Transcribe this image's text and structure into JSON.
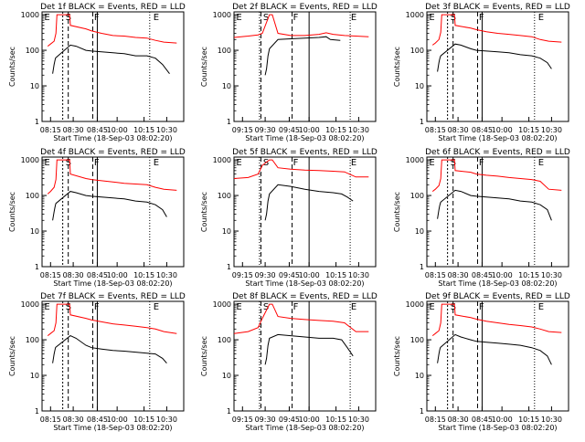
{
  "chart_data": [
    {
      "type": "line",
      "title": "Det 1f BLACK = Events, RED = LLD",
      "ylabel": "Counts/sec",
      "xlabel": "Start Time (18-Sep-03 08:02:20)",
      "x_ticks": [
        "08:15",
        "08:30",
        "08:45",
        "10:00",
        "10:15",
        "10:30"
      ],
      "y_ticks": [
        "1",
        "10",
        "100",
        "1000"
      ],
      "yscale": "log",
      "ylim": [
        1,
        1200
      ],
      "markers": [
        "E",
        "S",
        "F",
        "E"
      ],
      "series": [
        {
          "color": "#ff0000",
          "x": [
            0.04,
            0.06,
            0.085,
            0.098,
            0.105,
            0.195,
            0.2,
            0.31,
            0.35,
            0.42,
            0.5,
            0.58,
            0.66,
            0.74,
            0.8,
            0.86,
            0.95
          ],
          "y": [
            130,
            150,
            180,
            300,
            1000,
            1000,
            500,
            400,
            350,
            300,
            260,
            250,
            230,
            220,
            190,
            170,
            160
          ]
        },
        {
          "color": "#000000",
          "x": [
            0.075,
            0.085,
            0.09,
            0.095,
            0.098,
            0.2,
            0.24,
            0.31,
            0.35,
            0.42,
            0.5,
            0.58,
            0.66,
            0.74,
            0.8,
            0.85,
            0.9
          ],
          "y": [
            22,
            40,
            50,
            60,
            62,
            140,
            130,
            100,
            95,
            90,
            85,
            80,
            70,
            70,
            60,
            40,
            22
          ]
        }
      ]
    },
    {
      "type": "line",
      "title": "Det 2f BLACK = Events, RED = LLD",
      "ylabel": "Counts/sec",
      "xlabel": "Start Time (18-Sep-03 08:02:20)",
      "x_ticks": [
        "09:15",
        "09:30",
        "09:45",
        "10:00",
        "10:15",
        "10:30"
      ],
      "y_ticks": [
        "1",
        "10",
        "100",
        "1000"
      ],
      "yscale": "log",
      "ylim": [
        1,
        1200
      ],
      "markers": [
        "E",
        "S",
        "F",
        "E"
      ],
      "series": [
        {
          "color": "#ff0000",
          "x": [
            0.0,
            0.1,
            0.17,
            0.2,
            0.25,
            0.27,
            0.31,
            0.4,
            0.5,
            0.6,
            0.65,
            0.7,
            0.78,
            0.86,
            0.95
          ],
          "y": [
            230,
            250,
            270,
            300,
            1000,
            1000,
            300,
            260,
            260,
            280,
            310,
            280,
            260,
            250,
            240
          ]
        },
        {
          "color": "#000000",
          "x": [
            0.22,
            0.23,
            0.24,
            0.25,
            0.31,
            0.4,
            0.5,
            0.6,
            0.65,
            0.68,
            0.75
          ],
          "y": [
            20,
            30,
            70,
            110,
            200,
            210,
            220,
            230,
            240,
            200,
            190
          ]
        }
      ]
    },
    {
      "type": "line",
      "title": "Det 3f BLACK = Events, RED = LLD",
      "ylabel": "Counts/sec",
      "xlabel": "Start Time (18-Sep-03 08:02:20)",
      "x_ticks": [
        "08:15",
        "08:30",
        "08:45",
        "10:00",
        "10:15",
        "10:30"
      ],
      "y_ticks": [
        "1",
        "10",
        "100",
        "1000"
      ],
      "yscale": "log",
      "ylim": [
        1,
        1200
      ],
      "markers": [
        "E",
        "S",
        "F",
        "E"
      ],
      "series": [
        {
          "color": "#ff0000",
          "x": [
            0.04,
            0.06,
            0.085,
            0.098,
            0.105,
            0.195,
            0.2,
            0.31,
            0.35,
            0.42,
            0.5,
            0.58,
            0.66,
            0.74,
            0.8,
            0.86,
            0.95
          ],
          "y": [
            140,
            160,
            200,
            320,
            1000,
            1000,
            500,
            420,
            380,
            330,
            300,
            280,
            260,
            240,
            200,
            180,
            170
          ]
        },
        {
          "color": "#000000",
          "x": [
            0.075,
            0.085,
            0.09,
            0.095,
            0.098,
            0.2,
            0.24,
            0.31,
            0.35,
            0.42,
            0.5,
            0.58,
            0.66,
            0.74,
            0.8,
            0.85,
            0.88
          ],
          "y": [
            25,
            45,
            55,
            65,
            70,
            150,
            140,
            110,
            100,
            95,
            90,
            85,
            75,
            70,
            60,
            45,
            30
          ]
        }
      ]
    },
    {
      "type": "line",
      "title": "Det 4f BLACK = Events, RED = LLD",
      "ylabel": "Counts/sec",
      "xlabel": "Start Time (18-Sep-03 08:02:20)",
      "x_ticks": [
        "08:15",
        "08:30",
        "08:45",
        "10:00",
        "10:15",
        "10:30"
      ],
      "y_ticks": [
        "1",
        "10",
        "100",
        "1000"
      ],
      "yscale": "log",
      "ylim": [
        1,
        1200
      ],
      "markers": [
        "E",
        "S",
        "F",
        "E"
      ],
      "series": [
        {
          "color": "#ff0000",
          "x": [
            0.04,
            0.06,
            0.085,
            0.098,
            0.105,
            0.195,
            0.2,
            0.31,
            0.35,
            0.42,
            0.5,
            0.58,
            0.66,
            0.74,
            0.8,
            0.86,
            0.95
          ],
          "y": [
            110,
            130,
            170,
            280,
            1000,
            1000,
            400,
            300,
            280,
            260,
            240,
            220,
            210,
            200,
            170,
            150,
            140
          ]
        },
        {
          "color": "#000000",
          "x": [
            0.075,
            0.085,
            0.09,
            0.095,
            0.098,
            0.2,
            0.24,
            0.31,
            0.35,
            0.42,
            0.5,
            0.58,
            0.66,
            0.74,
            0.8,
            0.85,
            0.88
          ],
          "y": [
            20,
            35,
            45,
            55,
            60,
            130,
            120,
            100,
            95,
            90,
            85,
            80,
            70,
            65,
            55,
            40,
            25
          ]
        }
      ]
    },
    {
      "type": "line",
      "title": "Det 5f BLACK = Events, RED = LLD",
      "ylabel": "Counts/sec",
      "xlabel": "Start Time (18-Sep-03 08:02:20)",
      "x_ticks": [
        "09:15",
        "09:30",
        "09:45",
        "10:00",
        "10:15",
        "10:30"
      ],
      "y_ticks": [
        "1",
        "10",
        "100",
        "1000"
      ],
      "yscale": "log",
      "ylim": [
        1,
        1200
      ],
      "markers": [
        "E",
        "S",
        "F",
        "E"
      ],
      "series": [
        {
          "color": "#ff0000",
          "x": [
            0.0,
            0.1,
            0.17,
            0.2,
            0.25,
            0.27,
            0.31,
            0.4,
            0.5,
            0.6,
            0.7,
            0.78,
            0.86,
            0.95
          ],
          "y": [
            300,
            320,
            400,
            700,
            1000,
            1000,
            600,
            550,
            520,
            500,
            480,
            460,
            330,
            330
          ]
        },
        {
          "color": "#000000",
          "x": [
            0.22,
            0.23,
            0.24,
            0.25,
            0.31,
            0.4,
            0.5,
            0.6,
            0.7,
            0.76,
            0.8,
            0.84
          ],
          "y": [
            20,
            30,
            70,
            110,
            200,
            180,
            150,
            130,
            120,
            110,
            90,
            70
          ]
        }
      ]
    },
    {
      "type": "line",
      "title": "Det 6f BLACK = Events, RED = LLD",
      "ylabel": "Counts/sec",
      "xlabel": "Start Time (18-Sep-03 08:02:20)",
      "x_ticks": [
        "08:15",
        "08:30",
        "08:45",
        "10:00",
        "10:15",
        "10:30"
      ],
      "y_ticks": [
        "1",
        "10",
        "100",
        "1000"
      ],
      "yscale": "log",
      "ylim": [
        1,
        1200
      ],
      "markers": [
        "E",
        "S",
        "F",
        "E"
      ],
      "series": [
        {
          "color": "#ff0000",
          "x": [
            0.04,
            0.06,
            0.085,
            0.098,
            0.105,
            0.195,
            0.2,
            0.31,
            0.35,
            0.42,
            0.5,
            0.58,
            0.66,
            0.74,
            0.8,
            0.86,
            0.95
          ],
          "y": [
            130,
            150,
            190,
            300,
            1000,
            1000,
            500,
            450,
            400,
            370,
            350,
            320,
            300,
            280,
            250,
            150,
            140
          ]
        },
        {
          "color": "#000000",
          "x": [
            0.075,
            0.085,
            0.09,
            0.095,
            0.098,
            0.2,
            0.24,
            0.31,
            0.35,
            0.42,
            0.5,
            0.58,
            0.66,
            0.74,
            0.8,
            0.85,
            0.88
          ],
          "y": [
            22,
            40,
            50,
            60,
            65,
            140,
            130,
            100,
            95,
            90,
            85,
            80,
            70,
            65,
            55,
            40,
            20
          ]
        }
      ]
    },
    {
      "type": "line",
      "title": "Det 7f BLACK = Events, RED = LLD",
      "ylabel": "Counts/sec",
      "xlabel": "Start Time (18-Sep-03 08:02:20)",
      "x_ticks": [
        "08:15",
        "08:30",
        "08:45",
        "10:00",
        "10:15",
        "10:30"
      ],
      "y_ticks": [
        "1",
        "10",
        "100",
        "1000"
      ],
      "yscale": "log",
      "ylim": [
        1,
        1200
      ],
      "markers": [
        "E",
        "S",
        "F",
        "E"
      ],
      "series": [
        {
          "color": "#ff0000",
          "x": [
            0.04,
            0.06,
            0.085,
            0.098,
            0.105,
            0.195,
            0.2,
            0.31,
            0.35,
            0.42,
            0.5,
            0.58,
            0.66,
            0.74,
            0.8,
            0.86,
            0.95
          ],
          "y": [
            130,
            150,
            180,
            300,
            1000,
            1000,
            500,
            400,
            360,
            320,
            280,
            260,
            240,
            220,
            200,
            170,
            150
          ]
        },
        {
          "color": "#000000",
          "x": [
            0.075,
            0.085,
            0.09,
            0.095,
            0.098,
            0.2,
            0.24,
            0.31,
            0.35,
            0.42,
            0.5,
            0.58,
            0.66,
            0.74,
            0.8,
            0.85,
            0.88
          ],
          "y": [
            22,
            40,
            50,
            60,
            62,
            130,
            110,
            70,
            60,
            55,
            50,
            48,
            45,
            42,
            40,
            30,
            22
          ]
        }
      ]
    },
    {
      "type": "line",
      "title": "Det 8f BLACK = Events, RED = LLD",
      "ylabel": "Counts/sec",
      "xlabel": "Start Time (18-Sep-03 08:02:20)",
      "x_ticks": [
        "09:15",
        "09:30",
        "09:45",
        "10:00",
        "10:15",
        "10:30"
      ],
      "y_ticks": [
        "1",
        "10",
        "100",
        "1000"
      ],
      "yscale": "log",
      "ylim": [
        1,
        1200
      ],
      "markers": [
        "E",
        "S",
        "F",
        "E"
      ],
      "series": [
        {
          "color": "#ff0000",
          "x": [
            0.0,
            0.1,
            0.17,
            0.2,
            0.25,
            0.27,
            0.31,
            0.4,
            0.5,
            0.6,
            0.7,
            0.78,
            0.86,
            0.95
          ],
          "y": [
            150,
            170,
            220,
            400,
            1000,
            1000,
            450,
            400,
            370,
            350,
            330,
            300,
            170,
            170
          ]
        },
        {
          "color": "#000000",
          "x": [
            0.22,
            0.23,
            0.24,
            0.25,
            0.31,
            0.4,
            0.5,
            0.6,
            0.7,
            0.76,
            0.8,
            0.84
          ],
          "y": [
            20,
            30,
            70,
            110,
            140,
            130,
            120,
            110,
            110,
            100,
            60,
            35
          ]
        }
      ]
    },
    {
      "type": "line",
      "title": "Det 9f BLACK = Events, RED = LLD",
      "ylabel": "Counts/sec",
      "xlabel": "Start Time (18-Sep-03 08:02:20)",
      "x_ticks": [
        "08:15",
        "08:30",
        "08:45",
        "10:00",
        "10:15",
        "10:30"
      ],
      "y_ticks": [
        "1",
        "10",
        "100",
        "1000"
      ],
      "yscale": "log",
      "ylim": [
        1,
        1200
      ],
      "markers": [
        "E",
        "S",
        "F",
        "E"
      ],
      "series": [
        {
          "color": "#ff0000",
          "x": [
            0.04,
            0.06,
            0.085,
            0.098,
            0.105,
            0.195,
            0.2,
            0.31,
            0.35,
            0.42,
            0.5,
            0.58,
            0.66,
            0.74,
            0.8,
            0.86,
            0.95
          ],
          "y": [
            130,
            150,
            180,
            300,
            1000,
            1000,
            500,
            420,
            380,
            330,
            300,
            270,
            250,
            230,
            200,
            170,
            160
          ]
        },
        {
          "color": "#000000",
          "x": [
            0.075,
            0.085,
            0.09,
            0.095,
            0.098,
            0.2,
            0.24,
            0.31,
            0.35,
            0.42,
            0.5,
            0.58,
            0.66,
            0.74,
            0.8,
            0.85,
            0.88
          ],
          "y": [
            22,
            40,
            50,
            60,
            62,
            140,
            120,
            100,
            90,
            85,
            80,
            75,
            70,
            60,
            50,
            35,
            20
          ]
        }
      ]
    }
  ]
}
